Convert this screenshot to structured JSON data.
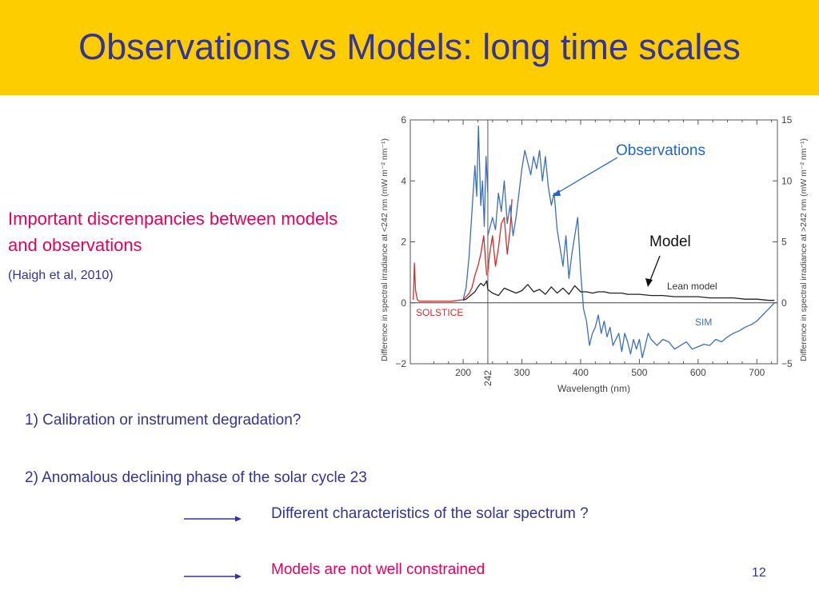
{
  "slide": {
    "title": "Observations vs Models: long time scales",
    "note_main": "Important discrenpancies between models and observations",
    "note_ref": "(Haigh et al, 2010)",
    "point1": "1) Calibration or instrument degradation?",
    "point2": "2) Anomalous declining phase of the solar cycle 23",
    "sub1": "Different characteristics of the solar spectrum ?",
    "sub2": "Models are not well constrained",
    "page_number": "12",
    "colors": {
      "header_bg": "#fdcd00",
      "title": "#333399",
      "highlight": "#e5005e",
      "body_text": "#333399"
    }
  },
  "chart_data": {
    "type": "line",
    "xlabel": "Wavelength (nm)",
    "ylabel_left": "Difference in spectral irradiance at <242 nm (mW m⁻² nm⁻¹)",
    "ylabel_right": "Difference in spectral irradiance at >242 nm (mW m⁻² nm⁻¹)",
    "xlim": [
      110,
      735
    ],
    "ylim_left": [
      -2,
      6
    ],
    "ylim_right": [
      -5,
      15
    ],
    "xticks": [
      200,
      300,
      400,
      500,
      600,
      700
    ],
    "xtick_labels": [
      "200",
      "300",
      "400",
      "500",
      "600",
      "700"
    ],
    "divider": {
      "x": 242,
      "label": "242"
    },
    "yticks_left": [
      -2,
      0,
      2,
      4,
      6
    ],
    "yticks_left_labels": [
      "−2",
      "0",
      "2",
      "4",
      "6"
    ],
    "yticks_right": [
      -5,
      0,
      5,
      10,
      15
    ],
    "yticks_right_labels": [
      "−5",
      "0",
      "5",
      "10",
      "15"
    ],
    "grid": false,
    "series": [
      {
        "name": "SOLSTICE",
        "color": "#d42b2b",
        "axis": "left",
        "x": [
          115,
          116,
          117,
          118,
          119,
          120,
          121,
          122,
          125,
          150,
          180,
          200,
          210,
          215,
          220,
          225,
          230,
          235,
          240
        ],
        "y": [
          0.1,
          0.6,
          1.3,
          0.8,
          0.4,
          0.3,
          0.2,
          0.1,
          0.05,
          0.05,
          0.05,
          0.1,
          0.3,
          0.5,
          0.9,
          1.2,
          1.6,
          2.2,
          0.9
        ]
      },
      {
        "name": "SOLSTICE",
        "color": "#d42b2b",
        "axis": "right",
        "x": [
          242,
          245,
          250,
          255,
          260,
          265,
          270,
          275,
          280,
          283
        ],
        "y": [
          2.5,
          4.0,
          5.5,
          3.0,
          4.5,
          6.5,
          7.0,
          4.0,
          6.0,
          8.5
        ]
      },
      {
        "name": "SIM",
        "color": "#3d6fb6",
        "axis": "left",
        "x": [
          200,
          205,
          210,
          215,
          220,
          223,
          226,
          230,
          233,
          236,
          239,
          242
        ],
        "y": [
          0.1,
          0.5,
          1.5,
          3.0,
          4.5,
          3.5,
          5.8,
          3.2,
          4.0,
          2.5,
          4.8,
          3.6
        ]
      },
      {
        "name": "SIM",
        "color": "#3d6fb6",
        "axis": "right",
        "x": [
          242,
          250,
          255,
          260,
          265,
          270,
          275,
          280,
          285,
          290,
          295,
          300,
          305,
          310,
          315,
          320,
          325,
          330,
          335,
          340,
          345,
          350,
          355,
          360,
          365,
          370,
          375,
          380,
          385,
          390,
          395,
          400,
          405,
          410,
          415,
          420,
          425,
          430,
          435,
          440,
          445,
          450,
          455,
          460,
          465,
          470,
          475,
          480,
          485,
          490,
          495,
          500,
          505,
          510,
          515,
          520,
          530,
          540,
          550,
          560,
          570,
          580,
          590,
          600,
          610,
          620,
          630,
          640,
          650,
          660,
          670,
          680,
          690,
          700,
          710,
          720,
          730
        ],
        "y": [
          5.5,
          7.0,
          6.0,
          9.0,
          7.5,
          10.0,
          6.5,
          8.0,
          5.5,
          7.0,
          9.0,
          11.0,
          12.5,
          11.5,
          10.5,
          12.0,
          11.0,
          12.5,
          10.0,
          12.0,
          9.5,
          8.0,
          9.0,
          6.0,
          4.5,
          3.0,
          5.5,
          2.0,
          4.0,
          5.5,
          7.0,
          2.5,
          -0.5,
          -1.5,
          -3.5,
          -2.5,
          -2.0,
          -1.0,
          -2.5,
          -1.5,
          -2.8,
          -2.0,
          -3.5,
          -3.0,
          -2.5,
          -4.0,
          -2.5,
          -3.2,
          -4.2,
          -3.0,
          -3.8,
          -3.0,
          -4.5,
          -3.5,
          -2.5,
          -3.0,
          -3.5,
          -3.0,
          -3.2,
          -3.8,
          -3.5,
          -3.2,
          -3.8,
          -3.6,
          -3.4,
          -3.5,
          -3.0,
          -3.2,
          -2.8,
          -2.5,
          -2.3,
          -2.0,
          -1.8,
          -1.5,
          -1.0,
          -0.5,
          0.0
        ]
      },
      {
        "name": "Lean model",
        "color": "#222222",
        "axis": "right",
        "x": [
          200,
          205,
          210,
          215,
          220,
          225,
          230,
          235,
          240,
          242,
          250,
          260,
          270,
          280,
          290,
          300,
          310,
          320,
          330,
          340,
          350,
          360,
          370,
          380,
          390,
          400,
          410,
          420,
          430,
          440,
          450,
          460,
          470,
          480,
          500,
          520,
          540,
          560,
          580,
          600,
          620,
          640,
          660,
          680,
          700,
          720,
          730
        ],
        "y": [
          0.2,
          0.3,
          0.5,
          0.7,
          0.9,
          1.3,
          1.6,
          1.4,
          1.8,
          1.1,
          0.8,
          0.6,
          1.2,
          1.0,
          0.8,
          1.0,
          1.5,
          0.9,
          1.1,
          0.7,
          1.3,
          0.8,
          1.2,
          0.7,
          1.4,
          0.9,
          0.9,
          0.8,
          0.9,
          0.9,
          0.8,
          0.8,
          0.8,
          0.7,
          0.7,
          0.6,
          0.6,
          0.5,
          0.5,
          0.5,
          0.4,
          0.4,
          0.4,
          0.3,
          0.3,
          0.2,
          0.2
        ]
      }
    ],
    "annotations": {
      "observations": "Observations",
      "model": "Model",
      "lean_model": "Lean model",
      "sim": "SIM",
      "solstice": "SOLSTICE"
    }
  }
}
